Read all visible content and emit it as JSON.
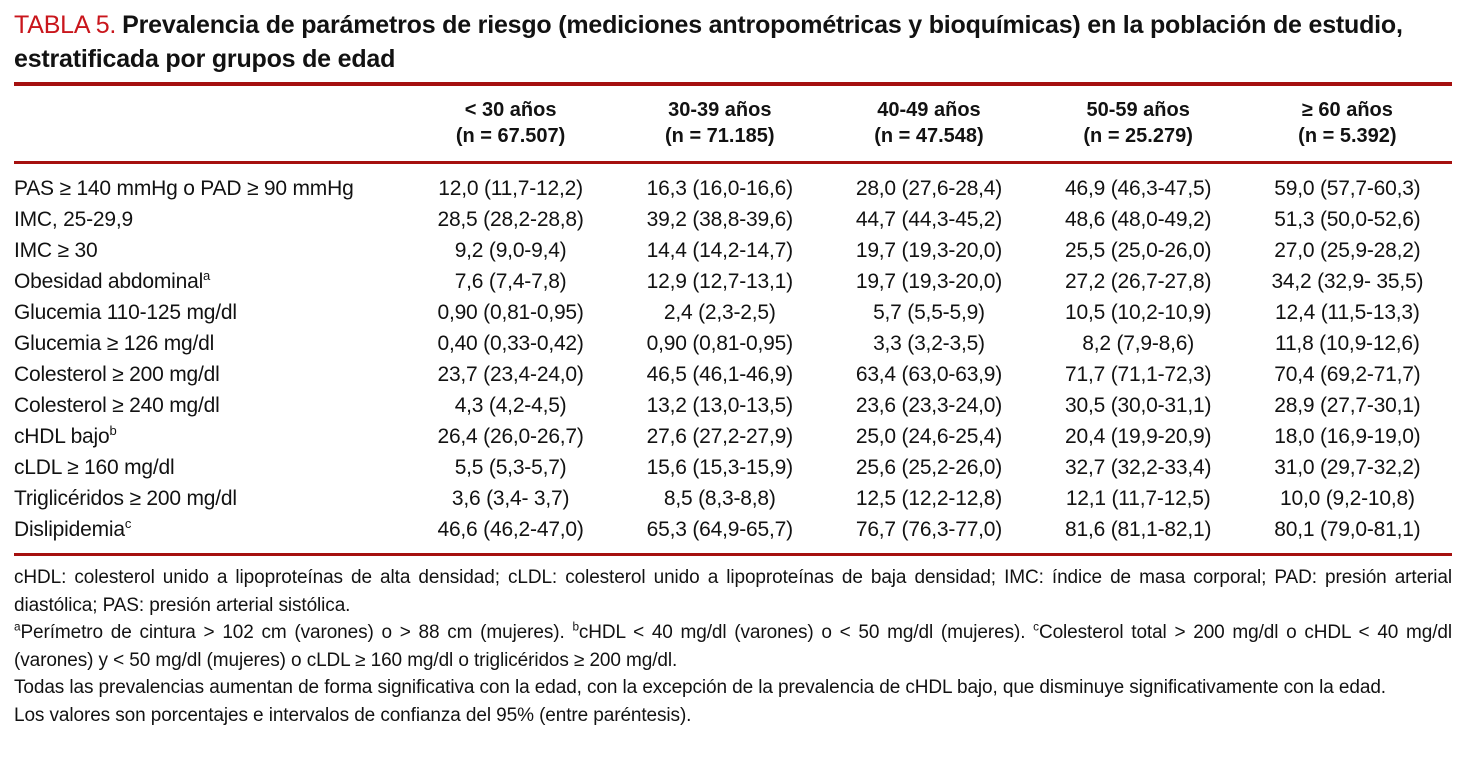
{
  "title": {
    "label": "TABLA 5.",
    "text": "Prevalencia de parámetros de riesgo (mediciones antropométricas y bioquímicas) en la población de estudio, estratificada por grupos de edad"
  },
  "colors": {
    "rule_red": "#a5100f",
    "title_red": "#c9161c",
    "text": "#121212"
  },
  "table": {
    "columns": [
      {
        "line1": "< 30 años",
        "line2": "(n = 67.507)"
      },
      {
        "line1": "30-39 años",
        "line2": "(n = 71.185)"
      },
      {
        "line1": "40-49 años",
        "line2": "(n = 47.548)"
      },
      {
        "line1": "50-59 años",
        "line2": "(n = 25.279)"
      },
      {
        "line1": "≥ 60 años",
        "line2": "(n = 5.392)"
      }
    ],
    "rows": [
      {
        "label": "PAS ≥ 140 mmHg o PAD ≥ 90 mmHg",
        "sup": "",
        "cells": [
          "12,0 (11,7-12,2)",
          "16,3 (16,0-16,6)",
          "28,0 (27,6-28,4)",
          "46,9 (46,3-47,5)",
          "59,0 (57,7-60,3)"
        ]
      },
      {
        "label": "IMC, 25-29,9",
        "sup": "",
        "cells": [
          "28,5 (28,2-28,8)",
          "39,2 (38,8-39,6)",
          "44,7 (44,3-45,2)",
          "48,6 (48,0-49,2)",
          "51,3 (50,0-52,6)"
        ]
      },
      {
        "label": "IMC ≥ 30",
        "sup": "",
        "cells": [
          "9,2 (9,0-9,4)",
          "14,4 (14,2-14,7)",
          "19,7 (19,3-20,0)",
          "25,5 (25,0-26,0)",
          "27,0 (25,9-28,2)"
        ]
      },
      {
        "label": "Obesidad abdominal",
        "sup": "a",
        "cells": [
          "7,6 (7,4-7,8)",
          "12,9 (12,7-13,1)",
          "19,7 (19,3-20,0)",
          "27,2 (26,7-27,8)",
          "34,2 (32,9- 35,5)"
        ]
      },
      {
        "label": "Glucemia 110-125 mg/dl",
        "sup": "",
        "cells": [
          "0,90 (0,81-0,95)",
          "2,4 (2,3-2,5)",
          "5,7 (5,5-5,9)",
          "10,5 (10,2-10,9)",
          "12,4 (11,5-13,3)"
        ]
      },
      {
        "label": "Glucemia ≥ 126 mg/dl",
        "sup": "",
        "cells": [
          "0,40 (0,33-0,42)",
          "0,90 (0,81-0,95)",
          "3,3 (3,2-3,5)",
          "8,2 (7,9-8,6)",
          "11,8 (10,9-12,6)"
        ]
      },
      {
        "label": "Colesterol ≥ 200 mg/dl",
        "sup": "",
        "cells": [
          "23,7 (23,4-24,0)",
          "46,5 (46,1-46,9)",
          "63,4 (63,0-63,9)",
          "71,7 (71,1-72,3)",
          "70,4 (69,2-71,7)"
        ]
      },
      {
        "label": "Colesterol ≥ 240 mg/dl",
        "sup": "",
        "cells": [
          "4,3 (4,2-4,5)",
          "13,2 (13,0-13,5)",
          "23,6 (23,3-24,0)",
          "30,5 (30,0-31,1)",
          "28,9 (27,7-30,1)"
        ]
      },
      {
        "label": "cHDL bajo",
        "sup": "b",
        "cells": [
          "26,4 (26,0-26,7)",
          "27,6 (27,2-27,9)",
          "25,0 (24,6-25,4)",
          "20,4 (19,9-20,9)",
          "18,0 (16,9-19,0)"
        ]
      },
      {
        "label": "cLDL ≥ 160 mg/dl",
        "sup": "",
        "cells": [
          "5,5 (5,3-5,7)",
          "15,6 (15,3-15,9)",
          "25,6 (25,2-26,0)",
          "32,7 (32,2-33,4)",
          "31,0 (29,7-32,2)"
        ]
      },
      {
        "label": "Triglicéridos ≥ 200 mg/dl",
        "sup": "",
        "cells": [
          "3,6 (3,4- 3,7)",
          "8,5 (8,3-8,8)",
          "12,5 (12,2-12,8)",
          "12,1 (11,7-12,5)",
          "10,0 (9,2-10,8)"
        ]
      },
      {
        "label": "Dislipidemia",
        "sup": "c",
        "cells": [
          "46,6 (46,2-47,0)",
          "65,3 (64,9-65,7)",
          "76,7 (76,3-77,0)",
          "81,6 (81,1-82,1)",
          "80,1 (79,0-81,1)"
        ]
      }
    ]
  },
  "footnotes": {
    "abbrev": "cHDL: colesterol unido a lipoproteínas de alta densidad; cLDL: colesterol unido a lipoproteínas de baja densidad; IMC: índice de masa corporal; PAD: presión arterial diastólica; PAS: presión arterial sistólica.",
    "defs": [
      {
        "sup": "a",
        "text": "Perímetro de cintura > 102 cm (varones) o > 88 cm (mujeres). "
      },
      {
        "sup": "b",
        "text": "cHDL < 40 mg/dl (varones) o < 50 mg/dl (mujeres). "
      },
      {
        "sup": "c",
        "text": "Colesterol total > 200 mg/dl o cHDL < 40 mg/dl (varones) y < 50 mg/dl (mujeres) o cLDL ≥ 160 mg/dl o triglicéridos ≥ 200 mg/dl."
      }
    ],
    "trend": "Todas las prevalencias aumentan de forma significativa con la edad, con la excepción de la prevalencia de cHDL bajo, que disminuye significativamente con la edad.",
    "values_note": "Los valores son porcentajes e intervalos de confianza del 95% (entre paréntesis)."
  }
}
